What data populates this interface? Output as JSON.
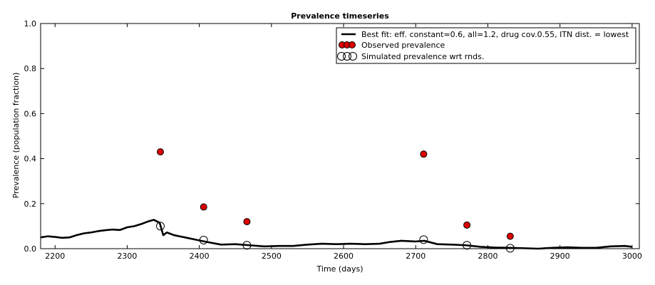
{
  "chart_data": {
    "type": "line",
    "title": "Prevalence timeseries",
    "xlabel": "Time (days)",
    "ylabel": "Prevalence (population fraction)",
    "xlim": [
      2180,
      3010
    ],
    "ylim": [
      0.0,
      1.0
    ],
    "x_ticks": [
      2200,
      2300,
      2400,
      2500,
      2600,
      2700,
      2800,
      2900,
      3000
    ],
    "y_ticks": [
      0.0,
      0.2,
      0.4,
      0.6,
      0.8,
      1.0
    ],
    "x_tick_labels": [
      "2200",
      "2300",
      "2400",
      "2500",
      "2600",
      "2700",
      "2800",
      "2900",
      "3000"
    ],
    "y_tick_labels": [
      "0.0",
      "0.2",
      "0.4",
      "0.6",
      "0.8",
      "1.0"
    ],
    "legend_position": "top-right",
    "series": [
      {
        "name": "Best fit: eff. constant=0.6, all=1.2, drug cov.0.55, ITN dist. = lowest",
        "kind": "line",
        "color": "#000000",
        "x": [
          2180,
          2190,
          2200,
          2210,
          2220,
          2230,
          2240,
          2250,
          2260,
          2270,
          2280,
          2290,
          2300,
          2310,
          2320,
          2330,
          2337,
          2345,
          2350,
          2355,
          2365,
          2380,
          2395,
          2410,
          2430,
          2450,
          2470,
          2490,
          2510,
          2530,
          2550,
          2570,
          2590,
          2610,
          2630,
          2650,
          2665,
          2680,
          2700,
          2712,
          2730,
          2750,
          2770,
          2790,
          2810,
          2830,
          2850,
          2870,
          2890,
          2910,
          2930,
          2950,
          2970,
          2990,
          3000
        ],
        "y": [
          0.05,
          0.055,
          0.052,
          0.048,
          0.05,
          0.06,
          0.068,
          0.072,
          0.078,
          0.082,
          0.085,
          0.083,
          0.095,
          0.1,
          0.11,
          0.122,
          0.128,
          0.115,
          0.06,
          0.072,
          0.06,
          0.05,
          0.04,
          0.03,
          0.018,
          0.02,
          0.015,
          0.01,
          0.012,
          0.012,
          0.018,
          0.022,
          0.02,
          0.022,
          0.02,
          0.022,
          0.03,
          0.035,
          0.032,
          0.035,
          0.02,
          0.018,
          0.015,
          0.008,
          0.005,
          0.004,
          0.002,
          0.0,
          0.004,
          0.006,
          0.004,
          0.004,
          0.01,
          0.012,
          0.008
        ]
      },
      {
        "name": "Observed prevalence",
        "kind": "scatter",
        "color": "#dd0000",
        "x": [
          2346,
          2406,
          2466,
          2711,
          2771,
          2831
        ],
        "y": [
          0.43,
          0.185,
          0.12,
          0.42,
          0.105,
          0.055
        ]
      },
      {
        "name": "Simulated prevalence wrt rnds.",
        "kind": "scatter-open",
        "color": "#000000",
        "x": [
          2346,
          2406,
          2466,
          2711,
          2771,
          2831
        ],
        "y": [
          0.1,
          0.038,
          0.015,
          0.04,
          0.015,
          0.002
        ]
      }
    ]
  }
}
